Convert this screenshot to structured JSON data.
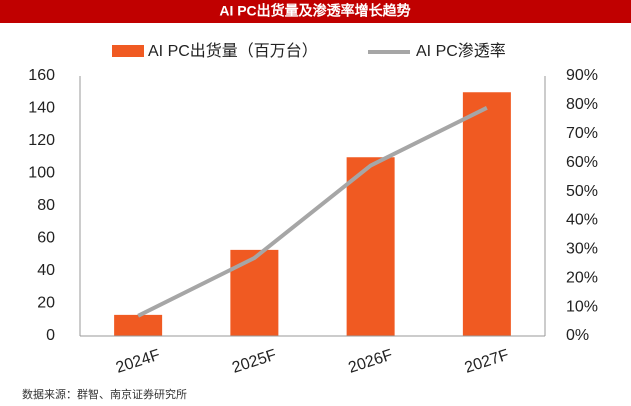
{
  "chart_data": {
    "type": "bar-line",
    "title": "AI PC出货量及渗透率增长趋势",
    "categories": [
      "2024F",
      "2025F",
      "2026F",
      "2027F"
    ],
    "series": [
      {
        "name": "AI PC出货量（百万台）",
        "type": "bar",
        "color": "#f05a22",
        "values": [
          13,
          53,
          110,
          150
        ]
      },
      {
        "name": "AI PC渗透率",
        "type": "line",
        "axis": "y2",
        "color": "#a6a6a6",
        "values": [
          7,
          27,
          59,
          79
        ]
      }
    ],
    "ylim": [
      0,
      160
    ],
    "yticks": [
      0,
      20,
      40,
      60,
      80,
      100,
      120,
      140,
      160
    ],
    "y2lim": [
      0,
      90
    ],
    "y2ticks": [
      {
        "value": 0,
        "label": "0%"
      },
      {
        "value": 10,
        "label": "10%"
      },
      {
        "value": 20,
        "label": "20%"
      },
      {
        "value": 30,
        "label": "30%"
      },
      {
        "value": 40,
        "label": "40%"
      },
      {
        "value": 50,
        "label": "50%"
      },
      {
        "value": 60,
        "label": "60%"
      },
      {
        "value": 70,
        "label": "70%"
      },
      {
        "value": 80,
        "label": "80%"
      },
      {
        "value": 90,
        "label": "90%"
      }
    ],
    "source": "数据来源：群智、南京证券研究所"
  }
}
